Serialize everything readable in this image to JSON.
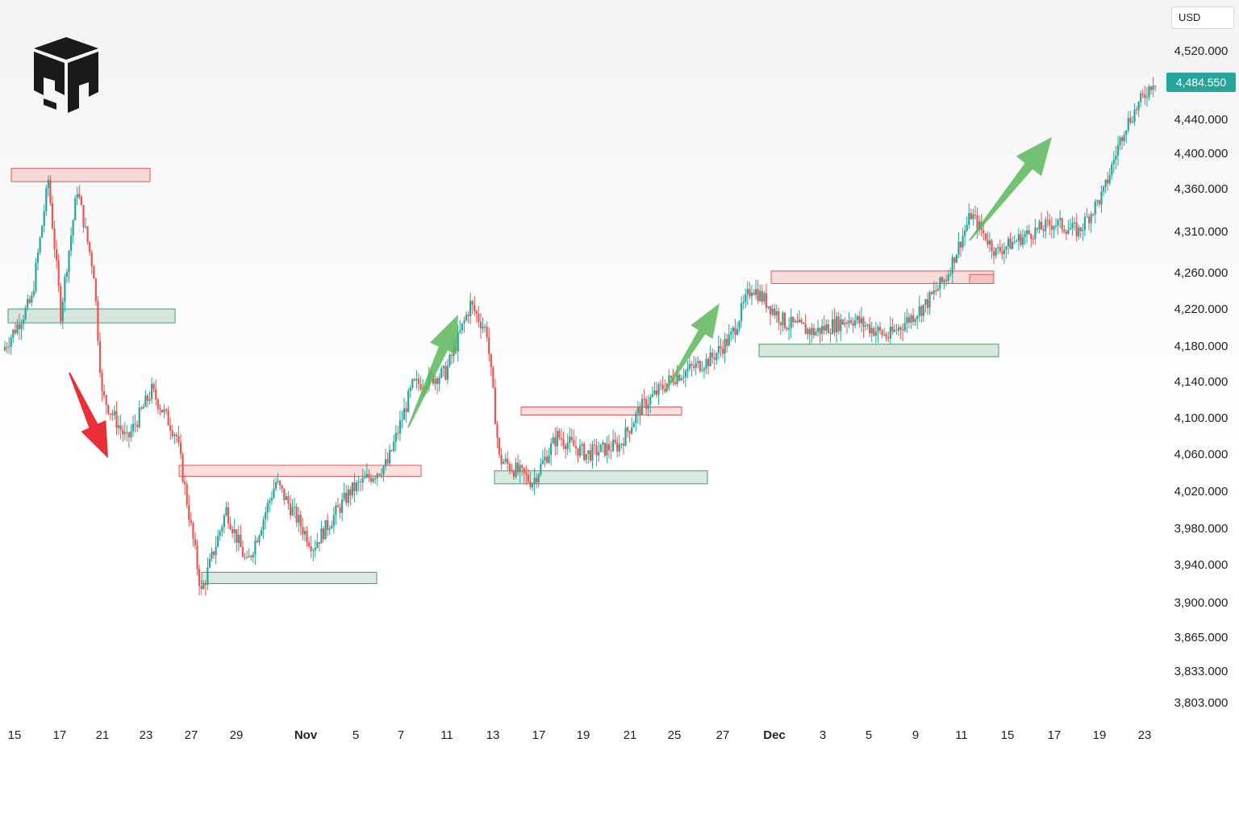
{
  "currency_label": "USD",
  "chart_data": {
    "type": "candlestick",
    "title": "",
    "xlabel": "",
    "ylabel": "",
    "y_axis_ticks": [
      "4,520.000",
      "4,440.000",
      "4,400.000",
      "4,360.000",
      "4,310.000",
      "4,260.000",
      "4,220.000",
      "4,180.000",
      "4,140.000",
      "4,100.000",
      "4,060.000",
      "4,020.000",
      "3,980.000",
      "3,940.000",
      "3,900.000",
      "3,865.000",
      "3,833.000",
      "3,803.000"
    ],
    "x_axis_ticks": [
      "15",
      "17",
      "21",
      "23",
      "27",
      "29",
      "Nov",
      "5",
      "7",
      "11",
      "13",
      "17",
      "19",
      "21",
      "25",
      "27",
      "Dec",
      "3",
      "5",
      "9",
      "11",
      "15",
      "17",
      "19",
      "23"
    ],
    "bold_x_ticks": [
      "Nov",
      "Dec"
    ],
    "last_price": "4,484.550",
    "ylim": [
      3790,
      4545
    ],
    "grid": false,
    "colors": {
      "up": "#26a69a",
      "down": "#ef5350",
      "arrow_up": "#5cb85c",
      "arrow_down": "#e8252b",
      "last_price_bg": "#26a69a"
    },
    "trend_waypoints": [
      [
        0,
        4175
      ],
      [
        14,
        4230
      ],
      [
        22,
        4370
      ],
      [
        28,
        4215
      ],
      [
        36,
        4360
      ],
      [
        44,
        4260
      ],
      [
        48,
        4125
      ],
      [
        60,
        4075
      ],
      [
        72,
        4130
      ],
      [
        84,
        4080
      ],
      [
        96,
        3910
      ],
      [
        108,
        4000
      ],
      [
        118,
        3940
      ],
      [
        132,
        4030
      ],
      [
        150,
        3960
      ],
      [
        168,
        4020
      ],
      [
        186,
        4050
      ],
      [
        198,
        4135
      ],
      [
        214,
        4150
      ],
      [
        226,
        4225
      ],
      [
        234,
        4195
      ],
      [
        240,
        4055
      ],
      [
        256,
        4030
      ],
      [
        268,
        4080
      ],
      [
        282,
        4060
      ],
      [
        298,
        4070
      ],
      [
        308,
        4110
      ],
      [
        324,
        4145
      ],
      [
        342,
        4165
      ],
      [
        352,
        4190
      ],
      [
        362,
        4245
      ],
      [
        378,
        4205
      ],
      [
        392,
        4195
      ],
      [
        410,
        4210
      ],
      [
        428,
        4190
      ],
      [
        446,
        4225
      ],
      [
        456,
        4255
      ],
      [
        468,
        4330
      ],
      [
        480,
        4285
      ],
      [
        494,
        4305
      ],
      [
        508,
        4320
      ],
      [
        520,
        4310
      ],
      [
        532,
        4355
      ],
      [
        542,
        4430
      ],
      [
        556,
        4485
      ]
    ],
    "support_zones": [
      {
        "from": 4205,
        "to": 4220
      },
      {
        "from": 3920,
        "to": 3932
      },
      {
        "from": 4028,
        "to": 4042
      },
      {
        "from": 4168,
        "to": 4182
      }
    ],
    "resistance_zones": [
      {
        "from": 4368,
        "to": 4383
      },
      {
        "from": 4036,
        "to": 4048
      },
      {
        "from": 4104,
        "to": 4112
      },
      {
        "from": 4248,
        "to": 4262
      },
      {
        "from": 4248,
        "to": 4258
      }
    ],
    "arrows": [
      {
        "direction": "down"
      },
      {
        "direction": "up"
      },
      {
        "direction": "up"
      },
      {
        "direction": "up"
      }
    ]
  }
}
